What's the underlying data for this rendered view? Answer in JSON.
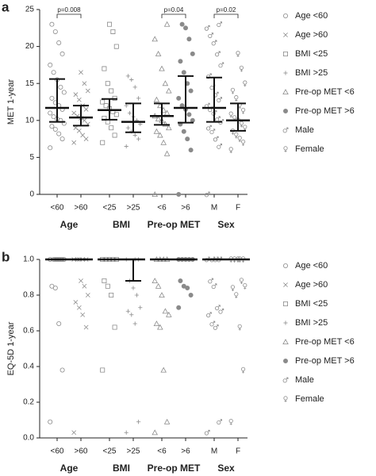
{
  "chart_data": [
    {
      "type": "dotplot",
      "panel": "a",
      "ylabel": "MET 1-year",
      "color": "#8a8a8a",
      "bar_color": "#111111",
      "ylim": [
        0,
        25
      ],
      "yticks": [
        0,
        5,
        10,
        15,
        20,
        25
      ],
      "groups": [
        {
          "label": "Age",
          "categories": [
            "<60",
            ">60"
          ],
          "p": "p=0.008"
        },
        {
          "label": "BMI",
          "categories": [
            "<25",
            ">25"
          ]
        },
        {
          "label": "Pre-op MET",
          "categories": [
            "<6",
            ">6"
          ],
          "p": "p=0.04"
        },
        {
          "label": "Sex",
          "categories": [
            "M",
            "F"
          ],
          "p": "p=0.02"
        }
      ],
      "series": [
        {
          "name": "Age <60",
          "marker": "circle",
          "center": 11.7,
          "lower": 9.8,
          "upper": 15.6,
          "values": [
            6.3,
            7.5,
            8.2,
            8.8,
            9.2,
            9.6,
            10,
            10.2,
            10.5,
            11,
            11.5,
            12,
            12.4,
            13,
            13.8,
            14.5,
            15.5,
            16.5,
            17.5,
            19,
            20.5,
            22,
            23
          ]
        },
        {
          "name": "Age >60",
          "marker": "x",
          "center": 10.4,
          "lower": 9.3,
          "upper": 12.0,
          "values": [
            7,
            7.5,
            8,
            8.6,
            9,
            9.5,
            10,
            10.3,
            10.6,
            11,
            11.5,
            12,
            12.8,
            13.5,
            14,
            15,
            16.5
          ]
        },
        {
          "name": "BMI <25",
          "marker": "square",
          "center": 11.4,
          "lower": 10.1,
          "upper": 12.9,
          "values": [
            7,
            8,
            9,
            9.8,
            10.3,
            10.8,
            11.2,
            11.6,
            12,
            12.5,
            13,
            14,
            15,
            17,
            20,
            22,
            23
          ]
        },
        {
          "name": "BMI >25",
          "marker": "plus",
          "center": 9.8,
          "lower": 8.4,
          "upper": 12.3,
          "values": [
            6.5,
            7.5,
            8,
            8.5,
            9,
            9.5,
            10,
            10.5,
            11,
            12,
            13,
            14.5,
            15.5,
            16
          ]
        },
        {
          "name": "Pre-op MET <6",
          "marker": "triangle",
          "center": 10.6,
          "lower": 9.4,
          "upper": 12.3,
          "values": [
            0,
            5.5,
            7,
            8,
            8.5,
            9,
            9.5,
            10,
            10.2,
            10.6,
            11,
            11.4,
            12,
            12.8,
            14,
            15,
            17,
            19,
            21,
            23
          ]
        },
        {
          "name": "Pre-op MET >6",
          "marker": "dot",
          "center": 11.7,
          "lower": 9.7,
          "upper": 16.0,
          "values": [
            0,
            6,
            7.5,
            8.5,
            9.5,
            10,
            10.8,
            11.5,
            12,
            13,
            14,
            15,
            16.5,
            18,
            19,
            21,
            22.5,
            23
          ]
        },
        {
          "name": "Male",
          "marker": "male",
          "center": 11.7,
          "lower": 9.8,
          "upper": 15.8,
          "values": [
            0,
            6.5,
            7.5,
            8.5,
            9,
            9.8,
            10.2,
            11,
            11.5,
            12,
            12.8,
            13.5,
            14.5,
            16,
            17.5,
            19,
            20.5,
            21.5,
            22.5,
            23
          ]
        },
        {
          "name": "Female",
          "marker": "female",
          "center": 10.0,
          "lower": 8.6,
          "upper": 12.3,
          "values": [
            6,
            7,
            7.5,
            8,
            8.5,
            9,
            9.5,
            10,
            10.3,
            10.8,
            11.3,
            12,
            13,
            14,
            15,
            17,
            19
          ]
        }
      ]
    },
    {
      "type": "dotplot",
      "panel": "b",
      "ylabel": "EQ-5D 1-year",
      "color": "#8a8a8a",
      "bar_color": "#111111",
      "ylim": [
        0,
        1
      ],
      "yticks": [
        {
          "value": 0,
          "label": "0.0"
        },
        0.2,
        0.4,
        0.6,
        0.8,
        {
          "value": 1,
          "label": "1.0"
        }
      ],
      "groups": [
        {
          "label": "Age",
          "categories": [
            "<60",
            ">60"
          ]
        },
        {
          "label": "BMI",
          "categories": [
            "<25",
            ">25"
          ]
        },
        {
          "label": "Pre-op MET",
          "categories": [
            "<6",
            ">6"
          ]
        },
        {
          "label": "Sex",
          "categories": [
            "M",
            "F"
          ]
        }
      ],
      "series": [
        {
          "name": "Age <60",
          "marker": "circle",
          "center": 1,
          "lower": 1,
          "upper": 1,
          "values": [
            0.09,
            0.38,
            0.64,
            0.84,
            0.85,
            1,
            1,
            1,
            1,
            1,
            1,
            1,
            1
          ]
        },
        {
          "name": "Age >60",
          "marker": "x",
          "center": 1,
          "lower": 1,
          "upper": 1,
          "values": [
            0.03,
            0.62,
            0.69,
            0.73,
            0.76,
            0.8,
            0.85,
            0.88,
            1,
            1,
            1,
            1,
            1
          ]
        },
        {
          "name": "BMI <25",
          "marker": "square",
          "center": 1,
          "lower": 1,
          "upper": 1,
          "values": [
            0.38,
            0.62,
            0.8,
            0.85,
            0.88,
            1,
            1,
            1,
            1,
            1
          ]
        },
        {
          "name": "BMI >25",
          "marker": "plus",
          "center": 1,
          "lower": 0.88,
          "upper": 1,
          "values": [
            0.03,
            0.09,
            0.64,
            0.69,
            0.71,
            0.73,
            0.8,
            0.84,
            0.88,
            1,
            1,
            1
          ]
        },
        {
          "name": "Pre-op MET <6",
          "marker": "triangle",
          "center": 1,
          "lower": 1,
          "upper": 1,
          "values": [
            0.03,
            0.09,
            0.38,
            0.62,
            0.64,
            0.69,
            0.71,
            0.8,
            0.85,
            0.88,
            1,
            1,
            1,
            1
          ]
        },
        {
          "name": "Pre-op MET >6",
          "marker": "dot",
          "center": 1,
          "lower": 1,
          "upper": 1,
          "values": [
            0.73,
            0.8,
            0.84,
            0.85,
            0.88,
            1,
            1,
            1,
            1,
            1
          ]
        },
        {
          "name": "Male",
          "marker": "male",
          "center": 1,
          "lower": 1,
          "upper": 1,
          "values": [
            0.03,
            0.09,
            0.62,
            0.64,
            0.69,
            0.71,
            0.73,
            0.85,
            0.88,
            1,
            1,
            1,
            1
          ]
        },
        {
          "name": "Female",
          "marker": "female",
          "center": 1,
          "lower": 1,
          "upper": 1,
          "values": [
            0.09,
            0.38,
            0.62,
            0.8,
            0.84,
            0.85,
            0.88,
            1,
            1,
            1,
            1,
            1
          ]
        }
      ]
    }
  ]
}
